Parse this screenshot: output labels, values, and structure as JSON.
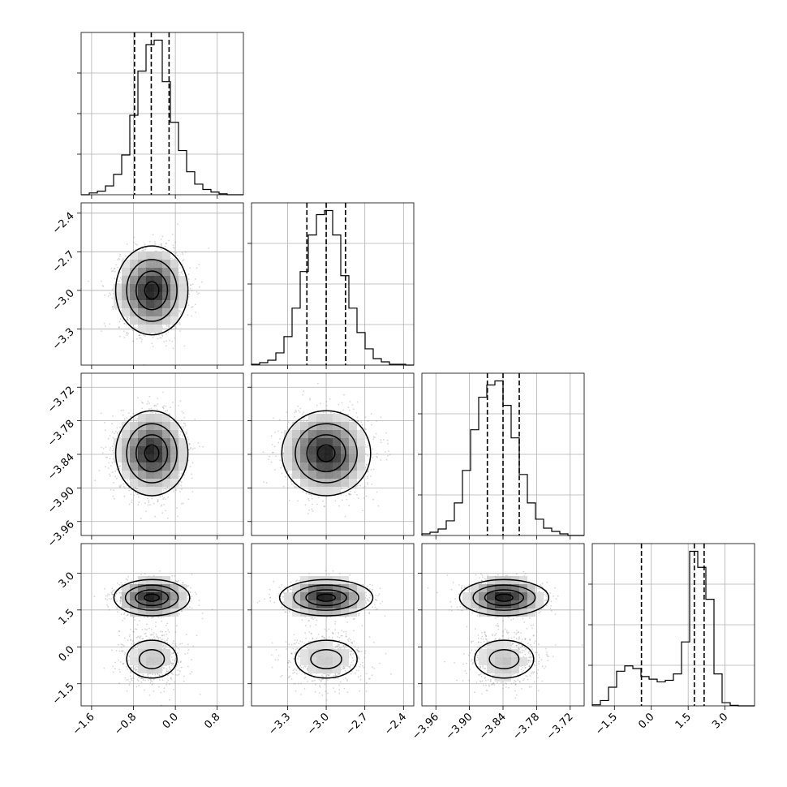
{
  "chart_data": {
    "type": "corner",
    "params": [
      {
        "range": [
          -1.8,
          1.3
        ],
        "ticks": [
          -1.6,
          -0.8,
          0.0,
          0.8
        ],
        "tick_labels": [
          "−1.6",
          "−0.8",
          "0.0",
          "0.8"
        ],
        "mean": -0.45,
        "sd": 0.3,
        "quantiles": [
          -0.78,
          -0.46,
          -0.12
        ]
      },
      {
        "range": [
          -3.58,
          -2.32
        ],
        "ticks": [
          -3.3,
          -3.0,
          -2.7,
          -2.4
        ],
        "tick_labels": [
          "−3.3",
          "−3.0",
          "−2.7",
          "−2.4"
        ],
        "mean": -3.0,
        "sd": 0.15,
        "quantiles": [
          -3.15,
          -3.0,
          -2.85
        ]
      },
      {
        "range": [
          -3.985,
          -3.695
        ],
        "ticks": [
          -3.96,
          -3.9,
          -3.84,
          -3.78,
          -3.72
        ],
        "tick_labels": [
          "−3.96",
          "−3.90",
          "−3.84",
          "−3.78",
          "−3.72"
        ],
        "mean": -3.838,
        "sd": 0.033,
        "quantiles": [
          -3.868,
          -3.84,
          -3.811
        ]
      },
      {
        "range": [
          -2.4,
          4.2
        ],
        "ticks": [
          -1.5,
          0.0,
          1.5,
          3.0
        ],
        "tick_labels": [
          "−1.5",
          "0.0",
          "1.5",
          "3.0"
        ],
        "mean": 1.4,
        "sd": 1.2,
        "quantiles": [
          -0.4,
          1.75,
          2.15
        ]
      }
    ],
    "histograms": [
      {
        "param": 0,
        "bins": [
          -1.8,
          -1.645,
          -1.49,
          -1.335,
          -1.18,
          -1.025,
          -0.87,
          -0.715,
          -0.56,
          -0.405,
          -0.25,
          -0.095,
          0.06,
          0.215,
          0.37,
          0.525,
          0.68,
          0.835,
          0.99,
          1.145,
          1.3
        ],
        "counts": [
          0,
          2,
          4,
          10,
          23,
          45,
          90,
          140,
          170,
          175,
          128,
          82,
          50,
          26,
          12,
          6,
          3,
          1,
          0,
          0
        ]
      },
      {
        "param": 1,
        "bins": [
          -3.58,
          -3.517,
          -3.454,
          -3.391,
          -3.328,
          -3.265,
          -3.202,
          -3.139,
          -3.076,
          -3.013,
          -2.95,
          -2.887,
          -2.824,
          -2.761,
          -2.698,
          -2.635,
          -2.572,
          -2.509,
          -2.446,
          -2.383,
          -2.32
        ],
        "counts": [
          1,
          3,
          6,
          15,
          35,
          70,
          115,
          160,
          185,
          190,
          160,
          110,
          70,
          40,
          20,
          8,
          4,
          1,
          1,
          0
        ]
      },
      {
        "param": 2,
        "bins": [
          -3.985,
          -3.9705,
          -3.956,
          -3.9415,
          -3.927,
          -3.9125,
          -3.898,
          -3.8835,
          -3.869,
          -3.8545,
          -3.84,
          -3.8255,
          -3.811,
          -3.7965,
          -3.782,
          -3.7675,
          -3.753,
          -3.7385,
          -3.724,
          -3.7095,
          -3.695
        ],
        "counts": [
          2,
          4,
          8,
          18,
          40,
          80,
          130,
          170,
          185,
          190,
          160,
          120,
          75,
          40,
          20,
          9,
          5,
          2,
          0,
          0
        ]
      },
      {
        "param": 3,
        "bins": [
          -2.4,
          -2.07,
          -1.74,
          -1.41,
          -1.08,
          -0.75,
          -0.42,
          -0.09,
          0.24,
          0.57,
          0.9,
          1.23,
          1.56,
          1.89,
          2.22,
          2.55,
          2.88,
          3.21,
          3.54,
          3.87,
          4.2
        ],
        "counts": [
          2,
          10,
          35,
          65,
          75,
          70,
          55,
          50,
          45,
          48,
          60,
          120,
          290,
          260,
          200,
          60,
          6,
          1,
          0,
          0
        ]
      }
    ],
    "grid": true,
    "marginal_quantile_lines": true,
    "density_contours": true
  }
}
